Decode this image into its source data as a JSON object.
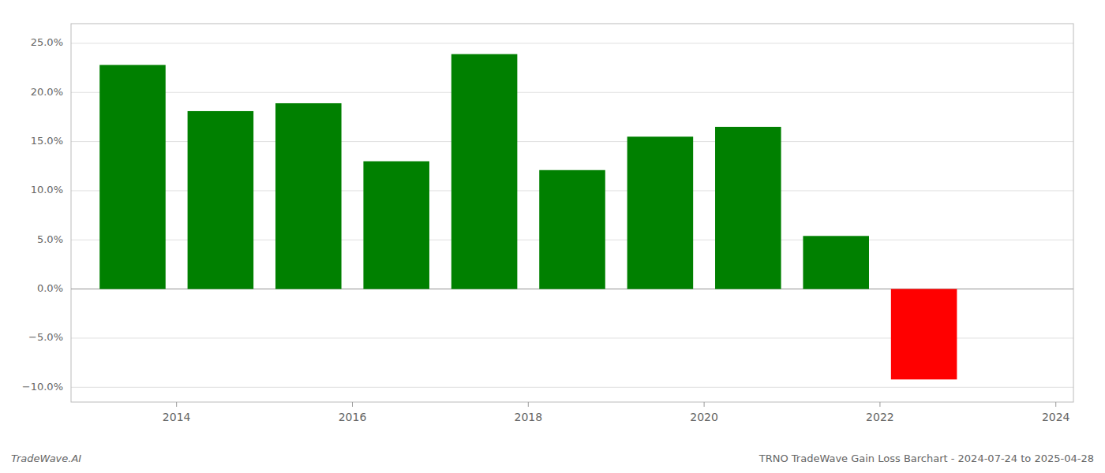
{
  "chart_data": {
    "type": "bar",
    "title": "TRNO TradeWave Gain Loss Barchart - 2024-07-24 to 2025-04-28",
    "annotations": [
      "TradeWave.AI"
    ],
    "x": [
      2013.5,
      2014.5,
      2015.5,
      2016.5,
      2017.5,
      2018.5,
      2019.5,
      2020.5,
      2021.5,
      2022.5
    ],
    "values": [
      0.228,
      0.181,
      0.189,
      0.13,
      0.239,
      0.121,
      0.155,
      0.165,
      0.054,
      -0.092
    ],
    "colors": [
      "#008000",
      "#008000",
      "#008000",
      "#008000",
      "#008000",
      "#008000",
      "#008000",
      "#008000",
      "#008000",
      "#ff0000"
    ],
    "xlim": [
      2012.8,
      2024.2
    ],
    "xticks": [
      2014,
      2016,
      2018,
      2020,
      2022,
      2024
    ],
    "ylim": [
      -0.115,
      0.27
    ],
    "yticks": [
      {
        "value": -0.1,
        "label": "−10.0%"
      },
      {
        "value": -0.05,
        "label": "−5.0%"
      },
      {
        "value": 0.0,
        "label": "0.0%"
      },
      {
        "value": 0.05,
        "label": "5.0%"
      },
      {
        "value": 0.1,
        "label": "10.0%"
      },
      {
        "value": 0.15,
        "label": "15.0%"
      },
      {
        "value": 0.2,
        "label": "20.0%"
      },
      {
        "value": 0.25,
        "label": "25.0%"
      }
    ],
    "grid": true
  }
}
